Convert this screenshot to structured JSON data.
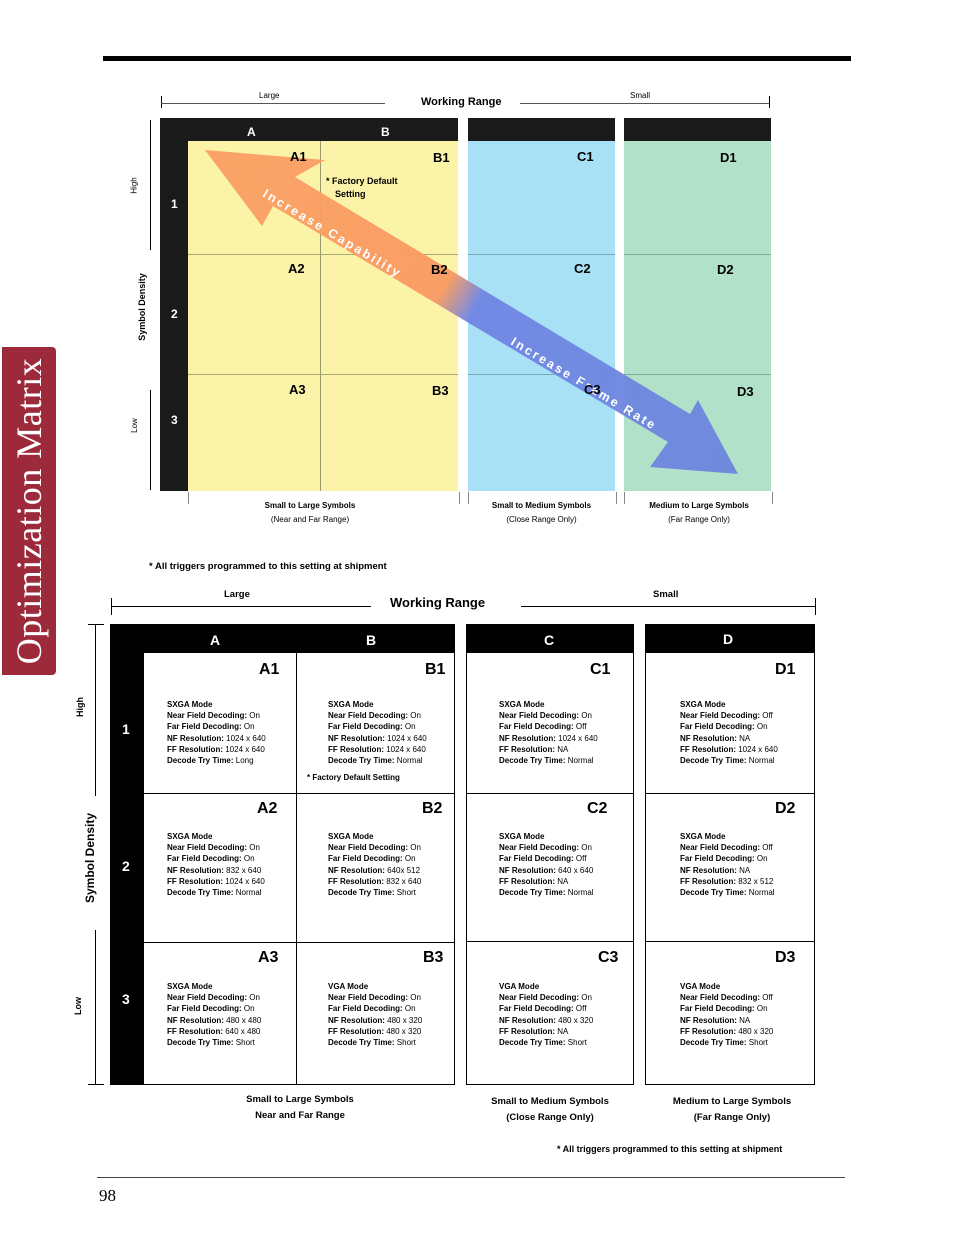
{
  "side_tab": "Optimization Matrix",
  "page_number": "98",
  "top": {
    "range_large": "Large",
    "range_title": "Working Range",
    "range_small": "Small",
    "col_a": "A",
    "col_b": "B",
    "axis_high": "High",
    "axis_title": "Symbol Density",
    "axis_low": "Low",
    "rows": [
      "1",
      "2",
      "3"
    ],
    "cells": [
      "A1",
      "B1",
      "C1",
      "D1",
      "A2",
      "B2",
      "C2",
      "D2",
      "A3",
      "B3",
      "C3",
      "D3"
    ],
    "factory_note_line1": "*  Factory Default",
    "factory_note_line2": "Setting",
    "arrow_capability": "Increase Capability",
    "arrow_frame_rate": "Increase Frame Rate",
    "captions": [
      {
        "line1": "Small to Large Symbols",
        "line2": "(Near and Far Range)"
      },
      {
        "line1": "Small to Medium Symbols",
        "line2": "(Close Range Only)"
      },
      {
        "line1": "Medium to Large Symbols",
        "line2": "(Far Range Only)"
      }
    ],
    "colors": {
      "yellow": "#fbf3a8",
      "blue": "#a8e0f6",
      "green": "#b2e1c9",
      "orange": "#f9a066",
      "arrow_blue": "#6f86e3"
    }
  },
  "shipment_note": "* All triggers programmed to this setting at shipment",
  "matrix": {
    "range_large": "Large",
    "range_title": "Working Range",
    "range_small": "Small",
    "columns": [
      "A",
      "B",
      "C",
      "D"
    ],
    "rows": [
      "1",
      "2",
      "3"
    ],
    "axis_high": "High",
    "axis_title": "Symbol Density",
    "axis_low": "Low",
    "labels": {
      "near": "Near Field Decoding:",
      "far": "Far Field Decoding:",
      "nf": "NF Resolution:",
      "ff": "FF Resolution:",
      "try": "Decode Try Time:"
    },
    "cells": [
      {
        "id": "A1",
        "mode": "SXGA Mode",
        "near": "On",
        "far": "On",
        "nf": "1024 x 640",
        "ff": "1024 x 640",
        "try": "Long"
      },
      {
        "id": "B1",
        "mode": "SXGA Mode",
        "near": "On",
        "far": "On",
        "nf": "1024 x 640",
        "ff": "1024 x 640",
        "try": "Normal"
      },
      {
        "id": "C1",
        "mode": "SXGA Mode",
        "near": "On",
        "far": "Off",
        "nf": "1024 x 640",
        "ff": "NA",
        "try": "Normal"
      },
      {
        "id": "D1",
        "mode": "SXGA Mode",
        "near": "Off",
        "far": "On",
        "nf": "NA",
        "ff": "1024 x 640",
        "try": "Normal"
      },
      {
        "id": "A2",
        "mode": "SXGA Mode",
        "near": "On",
        "far": "On",
        "nf": "832 x 640",
        "ff": "1024 x 640",
        "try": "Normal"
      },
      {
        "id": "B2",
        "mode": "SXGA Mode",
        "near": "On",
        "far": "On",
        "nf": "640x 512",
        "ff": "832 x 640",
        "try": "Short"
      },
      {
        "id": "C2",
        "mode": "SXGA Mode",
        "near": "On",
        "far": "Off",
        "nf": "640 x 640",
        "ff": "NA",
        "try": "Normal"
      },
      {
        "id": "D2",
        "mode": "SXGA Mode",
        "near": "Off",
        "far": "On",
        "nf": "NA",
        "ff": "832 x 512",
        "try": "Normal"
      },
      {
        "id": "A3",
        "mode": "SXGA Mode",
        "near": "On",
        "far": "On",
        "nf": "480 x 480",
        "ff": "640 x 480",
        "try": "Short"
      },
      {
        "id": "B3",
        "mode": "VGA Mode",
        "near": "On",
        "far": "On",
        "nf": "480 x 320",
        "ff": "480 x 320",
        "try": "Short"
      },
      {
        "id": "C3",
        "mode": "VGA Mode",
        "near": "On",
        "far": "Off",
        "nf": "480 x 320",
        "ff": "NA",
        "try": "Short"
      },
      {
        "id": "D3",
        "mode": "VGA Mode",
        "near": "Off",
        "far": "On",
        "nf": "NA",
        "ff": "480 x 320",
        "try": "Short"
      }
    ],
    "factory_default": "*  Factory Default Setting",
    "captions": [
      {
        "line1": "Small to Large Symbols",
        "line2": "Near and Far Range"
      },
      {
        "line1": "Small to Medium Symbols",
        "line2": "(Close Range Only)"
      },
      {
        "line1": "Medium to Large Symbols",
        "line2": "(Far Range Only)"
      }
    ],
    "shipment_note": "* All triggers programmed to this setting at shipment"
  }
}
